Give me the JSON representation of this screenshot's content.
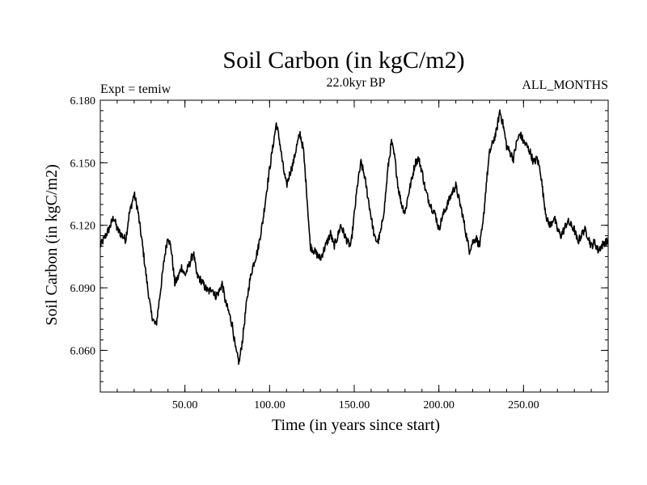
{
  "chart_data": {
    "type": "line",
    "title": "Soil Carbon (in kgC/m2)",
    "subtitle_left": "Expt = temiw",
    "subtitle_center": "22.0kyr BP",
    "subtitle_right": "ALL_MONTHS",
    "xlabel": "Time (in years since start)",
    "ylabel": "Soil Carbon (in kgC/m2)",
    "xlim": [
      0,
      300
    ],
    "ylim": [
      6.04,
      6.18
    ],
    "x_ticks": [
      50,
      100,
      150,
      200,
      250
    ],
    "x_tick_labels": [
      "50.00",
      "100.00",
      "150.00",
      "200.00",
      "250.00"
    ],
    "y_ticks": [
      6.06,
      6.09,
      6.12,
      6.15,
      6.18
    ],
    "y_tick_labels": [
      "6.060",
      "6.090",
      "6.120",
      "6.150",
      "6.180"
    ],
    "series": [
      {
        "name": "soil_carbon",
        "x": [
          0,
          5,
          8,
          10,
          15,
          17,
          20,
          22,
          25,
          28,
          30,
          32,
          33,
          35,
          38,
          40,
          42,
          44,
          46,
          48,
          50,
          53,
          55,
          57,
          60,
          62,
          64,
          66,
          68,
          70,
          72,
          74,
          76,
          78,
          80,
          82,
          84,
          86,
          88,
          90,
          93,
          96,
          98,
          100,
          102,
          104,
          106,
          108,
          110,
          112,
          114,
          116,
          118,
          120,
          122,
          124,
          126,
          128,
          130,
          132,
          134,
          136,
          138,
          140,
          142,
          144,
          146,
          148,
          150,
          152,
          154,
          156,
          158,
          160,
          162,
          164,
          166,
          168,
          170,
          172,
          174,
          176,
          178,
          180,
          182,
          184,
          186,
          188,
          190,
          192,
          194,
          196,
          198,
          200,
          202,
          204,
          206,
          208,
          210,
          212,
          214,
          216,
          218,
          220,
          222,
          224,
          226,
          228,
          230,
          232,
          234,
          236,
          238,
          240,
          242,
          244,
          246,
          248,
          250,
          252,
          254,
          256,
          258,
          260,
          262,
          264,
          266,
          268,
          270,
          272,
          274,
          276,
          278,
          280,
          282,
          284,
          286,
          288,
          290,
          292,
          294,
          296,
          298,
          300
        ],
        "values": [
          6.11,
          6.118,
          6.124,
          6.118,
          6.113,
          6.125,
          6.135,
          6.128,
          6.11,
          6.09,
          6.078,
          6.073,
          6.072,
          6.085,
          6.105,
          6.115,
          6.108,
          6.092,
          6.095,
          6.1,
          6.096,
          6.102,
          6.107,
          6.096,
          6.093,
          6.09,
          6.088,
          6.09,
          6.086,
          6.088,
          6.092,
          6.083,
          6.078,
          6.072,
          6.06,
          6.054,
          6.065,
          6.08,
          6.092,
          6.1,
          6.108,
          6.122,
          6.135,
          6.147,
          6.158,
          6.169,
          6.16,
          6.148,
          6.139,
          6.145,
          6.15,
          6.158,
          6.164,
          6.156,
          6.135,
          6.11,
          6.108,
          6.106,
          6.104,
          6.108,
          6.112,
          6.116,
          6.11,
          6.114,
          6.12,
          6.116,
          6.112,
          6.11,
          6.125,
          6.14,
          6.15,
          6.144,
          6.134,
          6.124,
          6.114,
          6.112,
          6.118,
          6.13,
          6.148,
          6.16,
          6.152,
          6.138,
          6.13,
          6.126,
          6.135,
          6.142,
          6.15,
          6.152,
          6.146,
          6.137,
          6.132,
          6.128,
          6.125,
          6.118,
          6.124,
          6.128,
          6.132,
          6.136,
          6.139,
          6.132,
          6.125,
          6.116,
          6.108,
          6.112,
          6.114,
          6.11,
          6.12,
          6.14,
          6.155,
          6.16,
          6.165,
          6.175,
          6.168,
          6.158,
          6.155,
          6.152,
          6.16,
          6.164,
          6.16,
          6.158,
          6.155,
          6.15,
          6.152,
          6.146,
          6.132,
          6.122,
          6.12,
          6.124,
          6.118,
          6.115,
          6.118,
          6.122,
          6.12,
          6.118,
          6.112,
          6.115,
          6.118,
          6.115,
          6.11,
          6.112,
          6.108,
          6.11,
          6.112,
          6.112
        ]
      }
    ]
  }
}
